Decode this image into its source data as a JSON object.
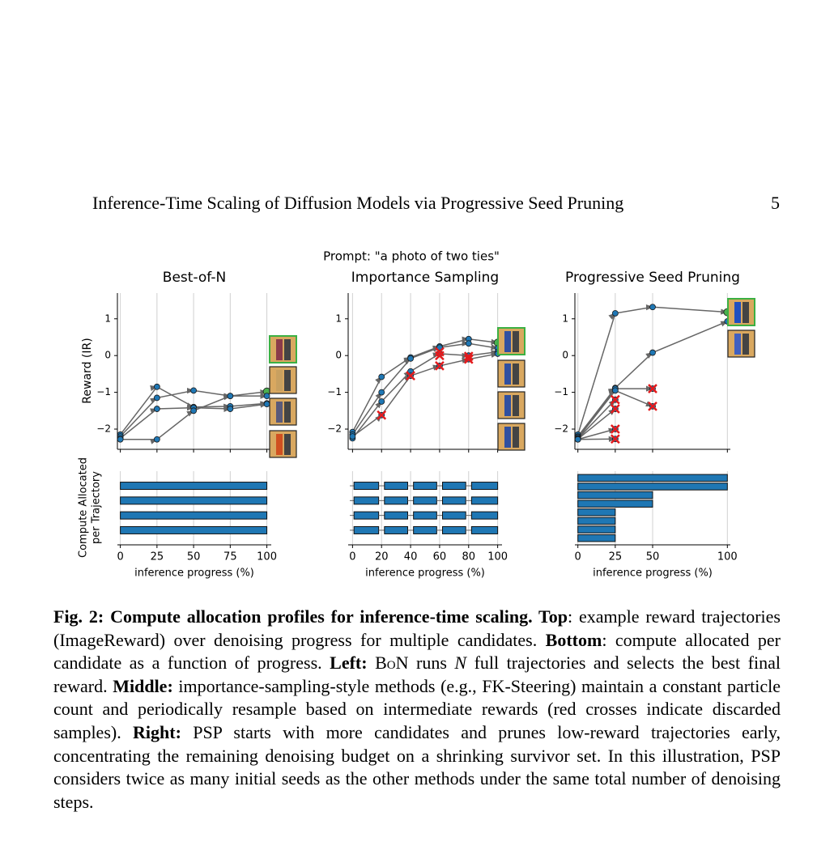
{
  "header": {
    "title": "Inference-Time Scaling of Diffusion Models via Progressive Seed Pruning",
    "page": "5"
  },
  "figure": {
    "prompt": "Prompt: \"a photo of two ties\"",
    "reward_ylabel": "Reward (IR)",
    "compute_ylabel": [
      "Compute Allocated",
      "per Trajectory"
    ],
    "point_color": "#1f77b4",
    "best_color": "#4caf50",
    "line_color": "#666666",
    "cross_color": "#e41a1c",
    "bar_color": "#1f77b4",
    "grid": true,
    "panels": [
      {
        "title": "Best-of-N",
        "xlabel": "inference progress (%)",
        "xlim": [
          -2,
          103
        ],
        "xticks": [
          0,
          25,
          50,
          75,
          100
        ],
        "ylim": [
          -2.55,
          1.7
        ],
        "yticks": [
          {
            "value": -2,
            "label": "−2"
          },
          {
            "value": -1,
            "label": "−1"
          },
          0,
          1
        ],
        "trajectories": [
          {
            "x": [
              0,
              25,
              50,
              75,
              100
            ],
            "values": [
              -2.15,
              -0.85,
              -1.4,
              -1.38,
              -1.3
            ]
          },
          {
            "x": [
              0,
              25,
              50,
              75,
              100
            ],
            "values": [
              -2.2,
              -1.15,
              -0.95,
              -1.1,
              -0.98
            ],
            "best": true
          },
          {
            "x": [
              0,
              25,
              50,
              75,
              100
            ],
            "values": [
              -2.25,
              -1.45,
              -1.42,
              -1.45,
              -1.32
            ]
          },
          {
            "x": [
              0,
              25,
              50,
              75,
              100
            ],
            "values": [
              -2.28,
              -2.28,
              -1.5,
              -1.1,
              -1.1
            ]
          }
        ],
        "discarded": {
          "x": [],
          "values": []
        },
        "bars": [
          [
            [
              0,
              100
            ]
          ],
          [
            [
              0,
              100
            ]
          ],
          [
            [
              0,
              100
            ]
          ],
          [
            [
              0,
              100
            ]
          ]
        ]
      },
      {
        "title": "Importance Sampling",
        "xlabel": "inference progress (%)",
        "xlim": [
          -3,
          103
        ],
        "xticks": [
          0,
          20,
          40,
          60,
          80,
          100
        ],
        "ylim": [
          -2.55,
          1.7
        ],
        "yticks": [
          {
            "value": -2,
            "label": "−2"
          },
          {
            "value": -1,
            "label": "−1"
          },
          0,
          1
        ],
        "trajectories": [
          {
            "x": [
              0,
              20,
              40,
              60,
              80,
              100
            ],
            "values": [
              -2.08,
              -0.58,
              -0.05,
              0.25,
              0.45,
              0.35
            ],
            "best": true
          },
          {
            "x": [
              0,
              20,
              40,
              60,
              80,
              100
            ],
            "values": [
              -2.15,
              -1.0,
              -0.08,
              0.22,
              0.33,
              0.2
            ]
          },
          {
            "x": [
              0,
              20,
              40,
              60,
              80,
              100
            ],
            "values": [
              -2.25,
              -1.25,
              -0.43,
              0.05,
              0.0,
              0.1
            ]
          },
          {
            "x": [
              0,
              20,
              40,
              60,
              80,
              100
            ],
            "values": [
              -2.2,
              -1.62,
              -0.55,
              -0.28,
              -0.1,
              0.05
            ]
          }
        ],
        "discarded": {
          "x": [
            20,
            40,
            60,
            60,
            60,
            80,
            80
          ],
          "values": [
            -1.62,
            -0.55,
            0.1,
            0.0,
            -0.28,
            -0.02,
            -0.1
          ]
        },
        "bars": [
          [
            [
              1,
              18
            ],
            [
              22,
              38
            ],
            [
              42,
              58
            ],
            [
              62,
              78
            ],
            [
              82,
              100
            ]
          ],
          [
            [
              1,
              18
            ],
            [
              22,
              38
            ],
            [
              42,
              58
            ],
            [
              62,
              78
            ],
            [
              82,
              100
            ]
          ],
          [
            [
              1,
              18
            ],
            [
              22,
              38
            ],
            [
              42,
              58
            ],
            [
              62,
              78
            ],
            [
              82,
              100
            ]
          ],
          [
            [
              1,
              18
            ],
            [
              22,
              38
            ],
            [
              42,
              58
            ],
            [
              62,
              78
            ],
            [
              82,
              100
            ]
          ]
        ]
      },
      {
        "title": "Progressive Seed Pruning",
        "xlabel": "inference progress (%)",
        "xlim": [
          -2,
          102
        ],
        "xticks": [
          0,
          25,
          50,
          100
        ],
        "ylim": [
          -2.55,
          1.7
        ],
        "yticks": [
          {
            "value": -2,
            "label": "−2"
          },
          {
            "value": -1,
            "label": "−1"
          },
          0,
          1
        ],
        "trajectories": [
          {
            "x": [
              0,
              25,
              50,
              100
            ],
            "values": [
              -2.15,
              1.15,
              1.32,
              1.18
            ],
            "best": true
          },
          {
            "x": [
              0,
              25,
              50,
              100
            ],
            "values": [
              -2.2,
              -0.88,
              0.08,
              0.93
            ]
          },
          {
            "x": [
              0,
              25,
              50
            ],
            "values": [
              -2.22,
              -0.9,
              -0.9
            ]
          },
          {
            "x": [
              0,
              25,
              50
            ],
            "values": [
              -2.25,
              -0.95,
              -1.38
            ]
          },
          {
            "x": [
              0,
              25
            ],
            "values": [
              -2.26,
              -1.2
            ]
          },
          {
            "x": [
              0,
              25
            ],
            "values": [
              -2.27,
              -1.45
            ]
          },
          {
            "x": [
              0,
              25
            ],
            "values": [
              -2.28,
              -2.0
            ]
          },
          {
            "x": [
              0,
              25
            ],
            "values": [
              -2.28,
              -2.27
            ]
          }
        ],
        "discarded": {
          "x": [
            50,
            50,
            25,
            25,
            25,
            25
          ],
          "values": [
            -0.9,
            -1.38,
            -1.2,
            -1.45,
            -2.0,
            -2.27
          ]
        },
        "bars": [
          [
            [
              0,
              100
            ]
          ],
          [
            [
              0,
              100
            ]
          ],
          [
            [
              0,
              50
            ]
          ],
          [
            [
              0,
              50
            ]
          ],
          [
            [
              0,
              25
            ]
          ],
          [
            [
              0,
              25
            ]
          ],
          [
            [
              0,
              25
            ]
          ],
          [
            [
              0,
              25
            ]
          ]
        ]
      }
    ]
  },
  "caption": [
    {
      "text": "Fig. 2: Compute allocation profiles for inference-time scaling. Top",
      "style": "bold"
    },
    {
      "text": ": example reward trajectories (ImageReward) over denoising progress for multiple candidates. ",
      "style": "normal"
    },
    {
      "text": "Bottom",
      "style": "bold"
    },
    {
      "text": ": compute allocated per candidate as a function of progress. ",
      "style": "normal"
    },
    {
      "text": "Left:",
      "style": "bold"
    },
    {
      "text": " ",
      "style": "normal"
    },
    {
      "text": "BoN",
      "style": "smallcaps"
    },
    {
      "text": " runs ",
      "style": "normal"
    },
    {
      "text": "N",
      "style": "italic"
    },
    {
      "text": " full trajectories and selects the best final reward. ",
      "style": "normal"
    },
    {
      "text": "Middle:",
      "style": "bold"
    },
    {
      "text": " importance-sampling-style methods (e.g., FK-Steering) maintain a constant particle count and periodically resample based on intermediate rewards (red crosses indicate discarded samples). ",
      "style": "normal"
    },
    {
      "text": "Right:",
      "style": "bold"
    },
    {
      "text": " PSP starts with more candidates and prunes low-reward trajectories early, concentrating the remaining denoising budget on a shrinking survivor set. In this illustration, PSP considers twice as many initial seeds as the other methods under the same total number of denoising steps.",
      "style": "normal"
    }
  ]
}
